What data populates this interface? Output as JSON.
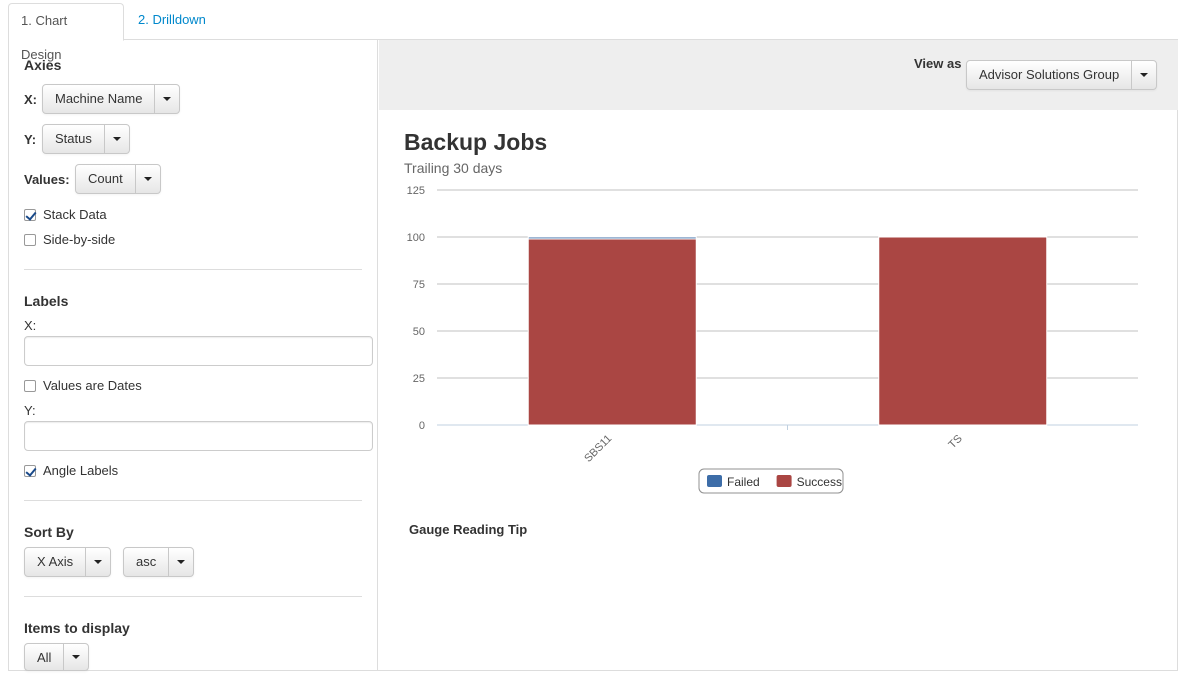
{
  "tabs": [
    {
      "label": "1. Chart Design",
      "active": true
    },
    {
      "label": "2. Drilldown",
      "active": false
    }
  ],
  "axes": {
    "heading": "Axies",
    "x_label": "X:",
    "x_value": "Machine Name",
    "y_label": "Y:",
    "y_value": "Status",
    "values_label": "Values:",
    "values_value": "Count",
    "stack_data": {
      "label": "Stack Data",
      "checked": true
    },
    "side_by_side": {
      "label": "Side-by-side",
      "checked": false
    }
  },
  "labels": {
    "heading": "Labels",
    "x_label": "X:",
    "x_value": "",
    "values_are_dates": {
      "label": "Values are Dates",
      "checked": false
    },
    "y_label": "Y:",
    "y_value": "",
    "angle_labels": {
      "label": "Angle Labels",
      "checked": true
    }
  },
  "sort_by": {
    "heading": "Sort By",
    "field": "X Axis",
    "direction": "asc"
  },
  "items_to_display": {
    "heading": "Items to display",
    "value": "All"
  },
  "toolbar": {
    "view_as_label": "View as",
    "group_value": "Advisor Solutions Group"
  },
  "chart": {
    "title": "Backup Jobs",
    "subtitle": "Trailing 30 days"
  },
  "gauge_tip": "Gauge Reading Tip",
  "colors": {
    "failed": "#3d6da8",
    "success": "#aa4643",
    "link": "#0088cc"
  },
  "chart_data": {
    "type": "bar",
    "stacked": true,
    "categories": [
      "SBS11",
      "TS"
    ],
    "series": [
      {
        "name": "Failed",
        "values": [
          1,
          0
        ],
        "color": "#3d6da8"
      },
      {
        "name": "Success",
        "values": [
          99,
          100
        ],
        "color": "#aa4643"
      }
    ],
    "ylim": [
      0,
      125
    ],
    "yticks": [
      0,
      25,
      50,
      75,
      100,
      125
    ],
    "grid": true,
    "legend": "bottom-center",
    "xlabel": "",
    "ylabel": ""
  }
}
